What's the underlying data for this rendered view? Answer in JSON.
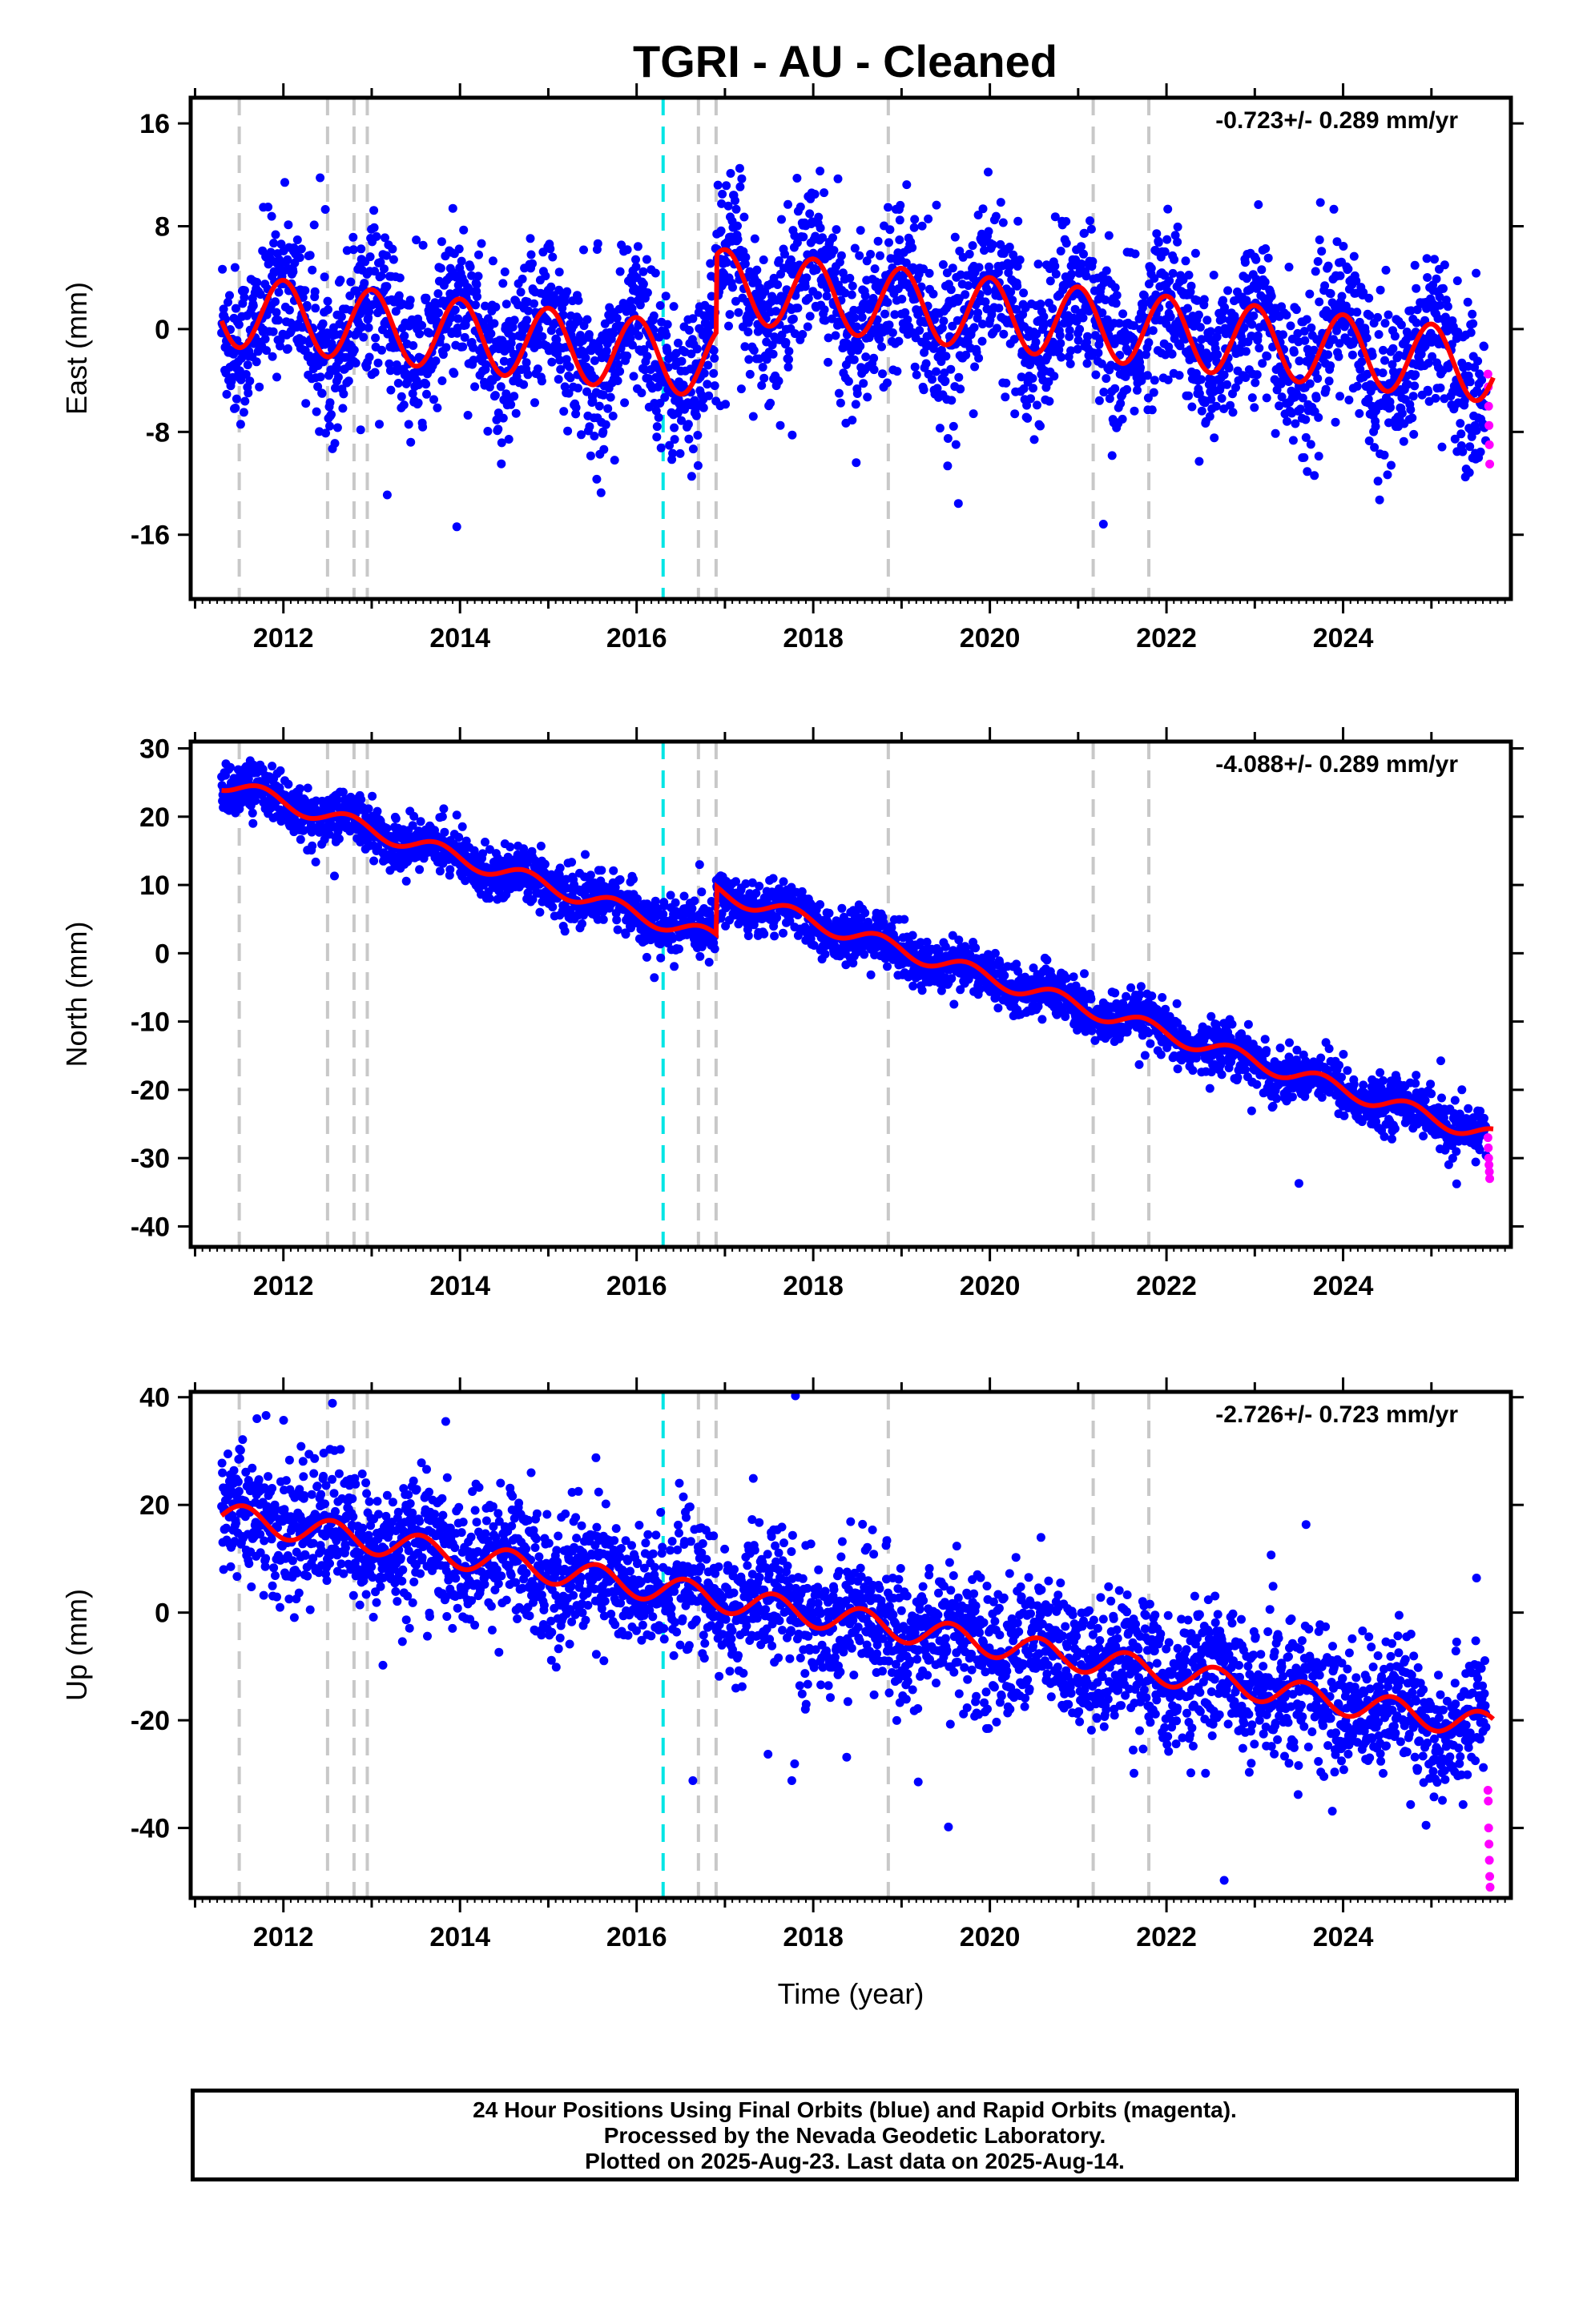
{
  "title": "TGRI  - AU - Cleaned",
  "footer": {
    "line1": "24 Hour Positions Using Final Orbits (blue) and Rapid Orbits (magenta).",
    "line2": "Processed by the Nevada Geodetic Laboratory.",
    "line3": "Plotted on 2025-Aug-23. Last data on 2025-Aug-14."
  },
  "colors": {
    "final_orbits": "#0000ff",
    "rapid_orbits": "#ff00ff",
    "model": "#ff0000",
    "equipment_change": "#c8c8c8",
    "earthquake": "#00e5e5"
  },
  "chart_data": [
    {
      "type": "scatter",
      "name": "east",
      "ylabel": "East (mm)",
      "xlabel": "",
      "rate_label": "-0.723+/- 0.289 mm/yr",
      "xlim": [
        2010.95,
        2025.9
      ],
      "ylim": [
        -21,
        18
      ],
      "xticks": [
        2012,
        2014,
        2016,
        2018,
        2020,
        2022,
        2024
      ],
      "yticks": [
        -16,
        -8,
        0,
        8,
        16
      ],
      "trend": {
        "start_year": 2011.3,
        "start_value": 1.5,
        "rate": -0.723,
        "annual_amp": 2.8,
        "phase": 0.75,
        "offsets": [
          {
            "year": 2016.9,
            "value": 6.0
          }
        ]
      },
      "scatter": 3.0,
      "rapid_values": [
        -3.5,
        -4.5,
        -6,
        -7.5,
        -9,
        -10.5
      ]
    },
    {
      "type": "scatter",
      "name": "north",
      "ylabel": "North (mm)",
      "xlabel": "",
      "rate_label": "-4.088+/- 0.289 mm/yr",
      "xlim": [
        2010.95,
        2025.9
      ],
      "ylim": [
        -43,
        31
      ],
      "xticks": [
        2012,
        2014,
        2016,
        2018,
        2020,
        2022,
        2024
      ],
      "yticks": [
        -40,
        -30,
        -20,
        -10,
        0,
        10,
        20,
        30
      ],
      "trend": {
        "start_year": 2011.3,
        "start_value": 25.0,
        "rate": -4.088,
        "annual_amp": 1.2,
        "phase": 0.5,
        "offsets": [
          {
            "year": 2016.9,
            "value": 7.0
          }
        ]
      },
      "scatter": 1.8,
      "rapid_values": [
        -27,
        -28.5,
        -30,
        -31,
        -32,
        -33
      ]
    },
    {
      "type": "scatter",
      "name": "up",
      "ylabel": "Up (mm)",
      "xlabel": "Time (year)",
      "rate_label": "-2.726+/- 0.723 mm/yr",
      "xlim": [
        2010.95,
        2025.9
      ],
      "ylim": [
        -53,
        41
      ],
      "xticks": [
        2012,
        2014,
        2016,
        2018,
        2020,
        2022,
        2024
      ],
      "yticks": [
        -40,
        -20,
        0,
        20,
        40
      ],
      "trend": {
        "start_year": 2011.3,
        "start_value": 18.0,
        "rate": -2.726,
        "annual_amp": 2.5,
        "phase": 0.3,
        "offsets": []
      },
      "scatter": 6.0,
      "rapid_values": [
        -33,
        -35,
        -40,
        -43,
        -46,
        -49,
        -51
      ]
    }
  ],
  "equipment_changes": [
    2011.5,
    2012.5,
    2012.8,
    2012.95,
    2016.7,
    2016.9,
    2018.85,
    2021.17,
    2021.8
  ],
  "earthquakes": [
    2016.3
  ]
}
